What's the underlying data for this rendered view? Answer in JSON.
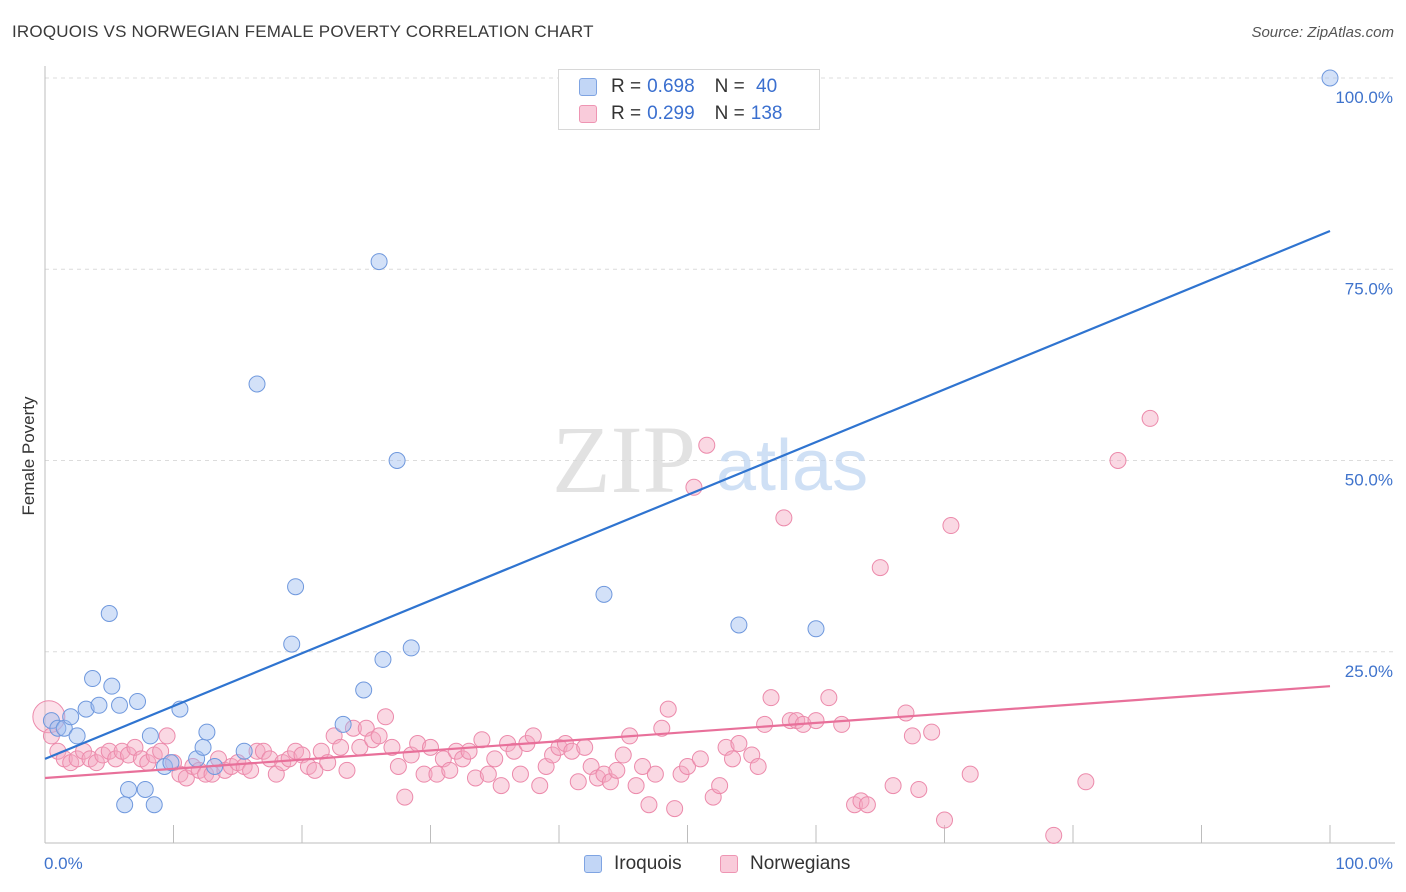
{
  "title": "IROQUOIS VS NORWEGIAN FEMALE POVERTY CORRELATION CHART",
  "source": "Source: ZipAtlas.com",
  "watermark": {
    "zip": "ZIP",
    "atlas": "atlas"
  },
  "legend": {
    "rows": [
      {
        "r_label": "R = ",
        "r_value": "0.698",
        "n_label": "N = ",
        "n_value": " 40",
        "color": "#9dbcf0"
      },
      {
        "r_label": "R = ",
        "r_value": "0.299",
        "n_label": "N = ",
        "n_value": "138",
        "color": "#f5a8c2"
      }
    ]
  },
  "chart_data": {
    "type": "scatter",
    "title": "IROQUOIS VS NORWEGIAN FEMALE POVERTY CORRELATION CHART",
    "xlabel": "",
    "ylabel": "Female Poverty",
    "xlim": [
      0,
      100
    ],
    "ylim": [
      0,
      100
    ],
    "x_tick_labels": [
      "0.0%",
      "100.0%"
    ],
    "y_ticks": [
      25,
      50,
      75,
      100
    ],
    "y_tick_labels": [
      "25.0%",
      "50.0%",
      "75.0%",
      "100.0%"
    ],
    "grid": true,
    "legend_position": "top-center",
    "series": [
      {
        "name": "Iroquois",
        "color": "#9dbcf0",
        "stroke": "#6f98dd",
        "line_color": "#2f74d0",
        "trend": {
          "x": [
            0,
            100
          ],
          "y": [
            11,
            80
          ]
        },
        "points": [
          [
            0.5,
            16
          ],
          [
            1.0,
            15
          ],
          [
            1.5,
            15
          ],
          [
            2.0,
            16.5
          ],
          [
            2.5,
            14
          ],
          [
            3.2,
            17.5
          ],
          [
            3.7,
            21.5
          ],
          [
            4.2,
            18
          ],
          [
            5.2,
            20.5
          ],
          [
            5.0,
            30
          ],
          [
            5.8,
            18
          ],
          [
            6.5,
            7
          ],
          [
            6.2,
            5
          ],
          [
            7.2,
            18.5
          ],
          [
            7.8,
            7
          ],
          [
            8.2,
            14
          ],
          [
            8.5,
            5
          ],
          [
            9.3,
            10
          ],
          [
            9.8,
            10.5
          ],
          [
            10.5,
            17.5
          ],
          [
            11.8,
            11
          ],
          [
            12.3,
            12.5
          ],
          [
            12.6,
            14.5
          ],
          [
            13.2,
            10
          ],
          [
            15.5,
            12
          ],
          [
            16.5,
            60
          ],
          [
            19.2,
            26
          ],
          [
            19.5,
            33.5
          ],
          [
            23.2,
            15.5
          ],
          [
            24.8,
            20
          ],
          [
            26.0,
            76
          ],
          [
            26.3,
            24
          ],
          [
            27.4,
            50
          ],
          [
            28.5,
            25.5
          ],
          [
            43.5,
            32.5
          ],
          [
            54.0,
            28.5
          ],
          [
            60.0,
            28
          ],
          [
            100.0,
            100
          ]
        ]
      },
      {
        "name": "Norwegians",
        "color": "#f5a8c2",
        "stroke": "#ec8aab",
        "line_color": "#e8709a",
        "trend": {
          "x": [
            0,
            100
          ],
          "y": [
            8.5,
            20.5
          ]
        },
        "points": [
          [
            0.3,
            16.5
          ],
          [
            0.5,
            14
          ],
          [
            1.0,
            12
          ],
          [
            1.5,
            11
          ],
          [
            2.0,
            10.5
          ],
          [
            2.5,
            11
          ],
          [
            3.0,
            12
          ],
          [
            3.5,
            11
          ],
          [
            4.0,
            10.5
          ],
          [
            4.5,
            11.5
          ],
          [
            5.0,
            12
          ],
          [
            5.5,
            11
          ],
          [
            6.0,
            12
          ],
          [
            6.5,
            11.5
          ],
          [
            7.0,
            12.5
          ],
          [
            7.5,
            11
          ],
          [
            8.0,
            10.5
          ],
          [
            8.5,
            11.5
          ],
          [
            9.0,
            12
          ],
          [
            9.5,
            14
          ],
          [
            10.0,
            10.5
          ],
          [
            10.5,
            9
          ],
          [
            11.0,
            8.5
          ],
          [
            11.5,
            10
          ],
          [
            12.0,
            9.5
          ],
          [
            12.5,
            9
          ],
          [
            13.0,
            9
          ],
          [
            13.5,
            11
          ],
          [
            14.0,
            9.5
          ],
          [
            14.5,
            10
          ],
          [
            15.0,
            10.5
          ],
          [
            15.5,
            10
          ],
          [
            16.0,
            9.5
          ],
          [
            16.5,
            12
          ],
          [
            17.0,
            12
          ],
          [
            17.5,
            11
          ],
          [
            18.0,
            9
          ],
          [
            18.5,
            10.5
          ],
          [
            19.0,
            11
          ],
          [
            19.5,
            12
          ],
          [
            20.0,
            11.5
          ],
          [
            20.5,
            10
          ],
          [
            21.0,
            9.5
          ],
          [
            21.5,
            12
          ],
          [
            22.0,
            10.5
          ],
          [
            22.5,
            14
          ],
          [
            23.0,
            12.5
          ],
          [
            23.5,
            9.5
          ],
          [
            24.0,
            15
          ],
          [
            24.5,
            12.5
          ],
          [
            25.0,
            15
          ],
          [
            25.5,
            13.5
          ],
          [
            26.0,
            14
          ],
          [
            26.5,
            16.5
          ],
          [
            27.0,
            12.5
          ],
          [
            27.5,
            10
          ],
          [
            28.0,
            6
          ],
          [
            28.5,
            11.5
          ],
          [
            29.0,
            13
          ],
          [
            29.5,
            9
          ],
          [
            30.0,
            12.5
          ],
          [
            30.5,
            9
          ],
          [
            31.0,
            11
          ],
          [
            31.5,
            9.5
          ],
          [
            32.0,
            12
          ],
          [
            32.5,
            11
          ],
          [
            33.0,
            12
          ],
          [
            33.5,
            8.5
          ],
          [
            34.0,
            13.5
          ],
          [
            34.5,
            9
          ],
          [
            35.0,
            11
          ],
          [
            35.5,
            7.5
          ],
          [
            36.0,
            13
          ],
          [
            36.5,
            12
          ],
          [
            37.0,
            9
          ],
          [
            37.5,
            13
          ],
          [
            38.0,
            14
          ],
          [
            38.5,
            7.5
          ],
          [
            39.0,
            10
          ],
          [
            39.5,
            11.5
          ],
          [
            40.0,
            12.5
          ],
          [
            40.5,
            13
          ],
          [
            41.0,
            12
          ],
          [
            41.5,
            8
          ],
          [
            42.0,
            12.5
          ],
          [
            42.5,
            10
          ],
          [
            43.0,
            8.5
          ],
          [
            43.5,
            9
          ],
          [
            44.0,
            8
          ],
          [
            44.5,
            9.5
          ],
          [
            45.0,
            11.5
          ],
          [
            45.5,
            14
          ],
          [
            46.0,
            7.5
          ],
          [
            46.5,
            10
          ],
          [
            47.0,
            5
          ],
          [
            47.5,
            9
          ],
          [
            48.0,
            15
          ],
          [
            48.5,
            17.5
          ],
          [
            49.0,
            4.5
          ],
          [
            49.5,
            9
          ],
          [
            50.0,
            10
          ],
          [
            50.5,
            46.5
          ],
          [
            51.0,
            11
          ],
          [
            51.5,
            52
          ],
          [
            52.0,
            6
          ],
          [
            52.5,
            7.5
          ],
          [
            53.0,
            12.5
          ],
          [
            53.5,
            11
          ],
          [
            54.0,
            13
          ],
          [
            55.0,
            11.5
          ],
          [
            55.5,
            10
          ],
          [
            56.0,
            15.5
          ],
          [
            56.5,
            19
          ],
          [
            57.5,
            42.5
          ],
          [
            58.0,
            16
          ],
          [
            58.5,
            16
          ],
          [
            59.0,
            15.5
          ],
          [
            60.0,
            16
          ],
          [
            61.0,
            19
          ],
          [
            62.0,
            15.5
          ],
          [
            63.0,
            5
          ],
          [
            63.5,
            5.5
          ],
          [
            64.0,
            5
          ],
          [
            65.0,
            36
          ],
          [
            66.0,
            7.5
          ],
          [
            67.0,
            17
          ],
          [
            67.5,
            14
          ],
          [
            68.0,
            7
          ],
          [
            69.0,
            14.5
          ],
          [
            70.0,
            3
          ],
          [
            70.5,
            41.5
          ],
          [
            72.0,
            9
          ],
          [
            78.5,
            1
          ],
          [
            81.0,
            8
          ],
          [
            83.5,
            50
          ],
          [
            86.0,
            55.5
          ]
        ]
      }
    ]
  }
}
